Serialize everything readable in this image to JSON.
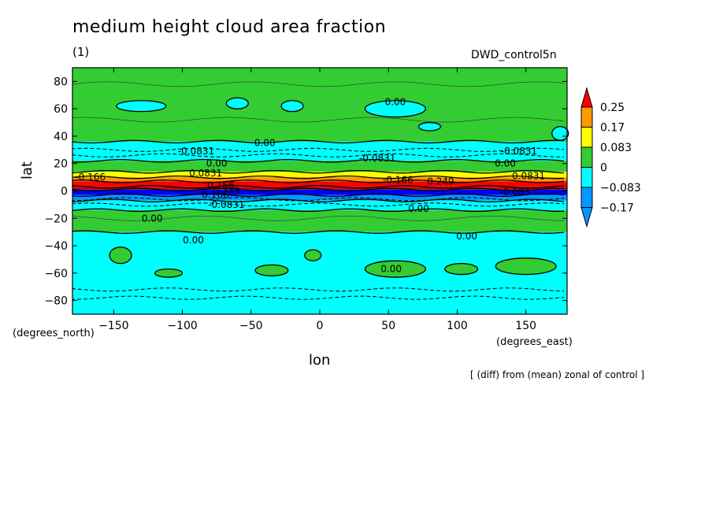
{
  "chart_data": {
    "type": "heatmap",
    "title": "medium height cloud area fraction",
    "subtitle": "(1)",
    "run_label": "DWD_control5n",
    "xlabel": "lon",
    "ylabel": "lat",
    "x_unit": "(degrees_east)",
    "y_unit": "(degrees_north)",
    "footnote": "[ (diff) from (mean) zonal of control ]",
    "xlim": [
      -180,
      180
    ],
    "ylim": [
      -90,
      90
    ],
    "xticks": [
      -150,
      -100,
      -50,
      0,
      50,
      100,
      150
    ],
    "yticks": [
      80,
      60,
      40,
      20,
      0,
      -20,
      -40,
      -60,
      -80
    ],
    "colorbar": {
      "levels": [
        "0.25",
        "0.17",
        "0.083",
        "0",
        "−0.083",
        "−0.17"
      ],
      "colors": [
        "#ff0000",
        "#ff9900",
        "#ffff00",
        "#33cc33",
        "#00ffff",
        "#0099ff",
        "#0000ff",
        "#cc0000"
      ]
    },
    "lat_bands": [
      {
        "lat_from": 90,
        "lat_to": 36,
        "value_class": "0 to 0.083",
        "color": "#33cc33"
      },
      {
        "lat_from": 36,
        "lat_to": 22,
        "value_class": "-0.083 to 0",
        "color": "#00ffff"
      },
      {
        "lat_from": 22,
        "lat_to": 14,
        "value_class": "0 to 0.083",
        "color": "#33cc33"
      },
      {
        "lat_from": 14,
        "lat_to": 10,
        "value_class": "0.083 to 0.17",
        "color": "#ffff00"
      },
      {
        "lat_from": 10,
        "lat_to": 7,
        "value_class": "0.17 to 0.25",
        "color": "#ff9900"
      },
      {
        "lat_from": 7,
        "lat_to": 3,
        "value_class": "> 0.25",
        "color": "#ff0000"
      },
      {
        "lat_from": 3,
        "lat_to": 1,
        "value_class": "peak",
        "color": "#cc0000"
      },
      {
        "lat_from": 1,
        "lat_to": -3,
        "value_class": "< -0.17",
        "color": "#0000ff"
      },
      {
        "lat_from": -3,
        "lat_to": -7,
        "value_class": "-0.17 to -0.083",
        "color": "#0099ff"
      },
      {
        "lat_from": -7,
        "lat_to": -14,
        "value_class": "-0.083 to 0",
        "color": "#00ffff"
      },
      {
        "lat_from": -14,
        "lat_to": -30,
        "value_class": "0 to 0.083",
        "color": "#33cc33"
      },
      {
        "lat_from": -30,
        "lat_to": -90,
        "value_class": "-0.083 to 0",
        "color": "#00ffff"
      }
    ],
    "patches": [
      {
        "lon": -130,
        "lat": 62,
        "rlon": 18,
        "rlat": 4,
        "color": "#00ffff"
      },
      {
        "lon": -60,
        "lat": 64,
        "rlon": 8,
        "rlat": 4,
        "color": "#00ffff"
      },
      {
        "lon": -20,
        "lat": 62,
        "rlon": 8,
        "rlat": 4,
        "color": "#00ffff"
      },
      {
        "lon": 55,
        "lat": 60,
        "rlon": 22,
        "rlat": 6,
        "color": "#00ffff"
      },
      {
        "lon": 80,
        "lat": 47,
        "rlon": 8,
        "rlat": 3,
        "color": "#00ffff"
      },
      {
        "lon": 175,
        "lat": 42,
        "rlon": 6,
        "rlat": 5,
        "color": "#00ffff"
      },
      {
        "lon": -145,
        "lat": -47,
        "rlon": 8,
        "rlat": 6,
        "color": "#33cc33"
      },
      {
        "lon": -110,
        "lat": -60,
        "rlon": 10,
        "rlat": 3,
        "color": "#33cc33"
      },
      {
        "lon": -35,
        "lat": -58,
        "rlon": 12,
        "rlat": 4,
        "color": "#33cc33"
      },
      {
        "lon": -5,
        "lat": -47,
        "rlon": 6,
        "rlat": 4,
        "color": "#33cc33"
      },
      {
        "lon": 55,
        "lat": -57,
        "rlon": 22,
        "rlat": 6,
        "color": "#33cc33"
      },
      {
        "lon": 103,
        "lat": -57,
        "rlon": 12,
        "rlat": 4,
        "color": "#33cc33"
      },
      {
        "lon": 150,
        "lat": -55,
        "rlon": 22,
        "rlat": 6,
        "color": "#33cc33"
      }
    ],
    "contour_labels": [
      {
        "text": "0.00",
        "lon": 55,
        "lat": 65
      },
      {
        "text": "0.00",
        "lon": -40,
        "lat": 35
      },
      {
        "text": "-0.0831",
        "lon": -90,
        "lat": 29
      },
      {
        "text": "-0.0831",
        "lon": 42,
        "lat": 24
      },
      {
        "text": "-0.0831",
        "lon": 145,
        "lat": 29
      },
      {
        "text": "0.00",
        "lon": -75,
        "lat": 20
      },
      {
        "text": "0.00",
        "lon": 135,
        "lat": 20
      },
      {
        "text": "0.0831",
        "lon": -83,
        "lat": 13
      },
      {
        "text": "0.0831",
        "lon": 152,
        "lat": 11
      },
      {
        "text": "-0.166",
        "lon": -167,
        "lat": 10
      },
      {
        "text": "-0.166",
        "lon": 57,
        "lat": 8
      },
      {
        "text": "0.249",
        "lon": 88,
        "lat": 7
      },
      {
        "text": "0.166",
        "lon": -72,
        "lat": 4
      },
      {
        "text": "0.249",
        "lon": -68,
        "lat": 0
      },
      {
        "text": "0.166",
        "lon": -76,
        "lat": -3
      },
      {
        "text": "-0.0831",
        "lon": -68,
        "lat": -10
      },
      {
        "text": "-0.083",
        "lon": 142,
        "lat": -1
      },
      {
        "text": "0.00",
        "lon": 72,
        "lat": -13
      },
      {
        "text": "0.00",
        "lon": -122,
        "lat": -20
      },
      {
        "text": "0.00",
        "lon": -92,
        "lat": -36
      },
      {
        "text": "0.00",
        "lon": 107,
        "lat": -33
      },
      {
        "text": "0.00",
        "lon": 52,
        "lat": -57
      }
    ]
  }
}
